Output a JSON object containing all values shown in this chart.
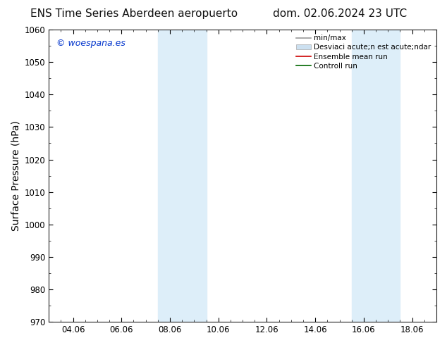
{
  "title_left": "ENS Time Series Aberdeen aeropuerto",
  "title_right": "dom. 02.06.2024 23 UTC",
  "ylabel": "Surface Pressure (hPa)",
  "ylim": [
    970,
    1060
  ],
  "yticks": [
    970,
    980,
    990,
    1000,
    1010,
    1020,
    1030,
    1040,
    1050,
    1060
  ],
  "xtick_labels": [
    "04.06",
    "06.06",
    "08.06",
    "10.06",
    "12.06",
    "14.06",
    "16.06",
    "18.06"
  ],
  "xtick_positions": [
    1,
    3,
    5,
    7,
    9,
    11,
    13,
    15
  ],
  "xlim": [
    0,
    16
  ],
  "shaded_bands": [
    {
      "x_start": 4.5,
      "x_end": 5.5,
      "x_start2": 5.5,
      "x_end2": 6.5
    },
    {
      "x_start": 12.5,
      "x_end": 13.5,
      "x_start2": 13.5,
      "x_end2": 14.5
    }
  ],
  "shaded_color": "#ddeef9",
  "background_color": "#ffffff",
  "plot_bg_color": "#ffffff",
  "watermark_text": "© woespana.es",
  "watermark_color": "#0033cc",
  "legend_entries": [
    {
      "label": "min/max",
      "color": "#999999",
      "lw": 1.2,
      "style": "line"
    },
    {
      "label": "Desviaci acute;n est acute;ndar",
      "color": "#cce0f0",
      "lw": 8,
      "style": "band"
    },
    {
      "label": "Ensemble mean run",
      "color": "#cc0000",
      "lw": 1.2,
      "style": "line"
    },
    {
      "label": "Controll run",
      "color": "#006600",
      "lw": 1.2,
      "style": "line"
    }
  ],
  "title_fontsize": 11,
  "axis_label_fontsize": 10,
  "tick_fontsize": 8.5,
  "watermark_fontsize": 9,
  "legend_fontsize": 7.5
}
